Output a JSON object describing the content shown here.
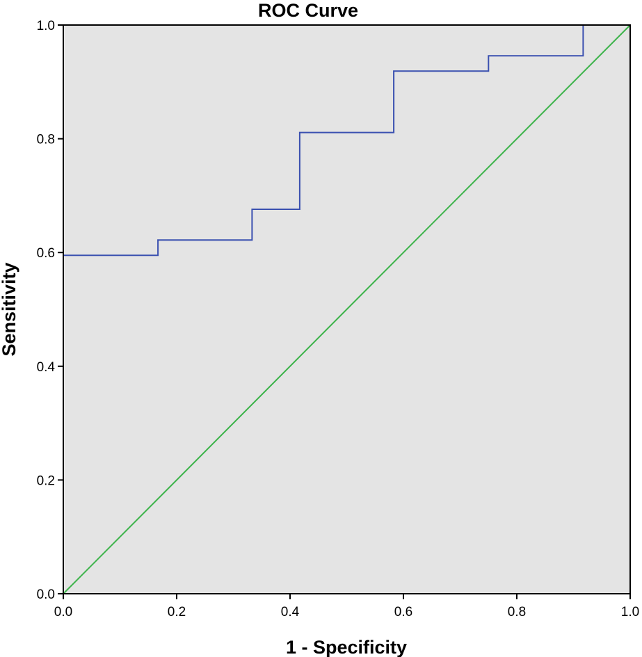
{
  "chart_data": {
    "type": "line",
    "title": "ROC Curve",
    "xlabel": "1 - Specificity",
    "ylabel": "Sensitivity",
    "xlim": [
      0,
      1
    ],
    "ylim": [
      0,
      1
    ],
    "x_ticks": [
      "0.0",
      "0.2",
      "0.4",
      "0.6",
      "0.8",
      "1.0"
    ],
    "y_ticks": [
      "0.0",
      "0.2",
      "0.4",
      "0.6",
      "0.8",
      "1.0"
    ],
    "grid": false,
    "plot_background": "#e4e4e4",
    "series": [
      {
        "step": true,
        "color": "#3a50b0",
        "x": [
          0.0,
          0.167,
          0.167,
          0.333,
          0.333,
          0.417,
          0.417,
          0.583,
          0.583,
          0.75,
          0.75,
          0.917,
          0.917
        ],
        "y": [
          0.595,
          0.595,
          0.622,
          0.622,
          0.676,
          0.676,
          0.811,
          0.811,
          0.919,
          0.919,
          0.946,
          0.946,
          1.0
        ]
      },
      {
        "color": "#3cb34a",
        "x": [
          0.0,
          1.0
        ],
        "y": [
          0.0,
          1.0
        ]
      }
    ]
  }
}
